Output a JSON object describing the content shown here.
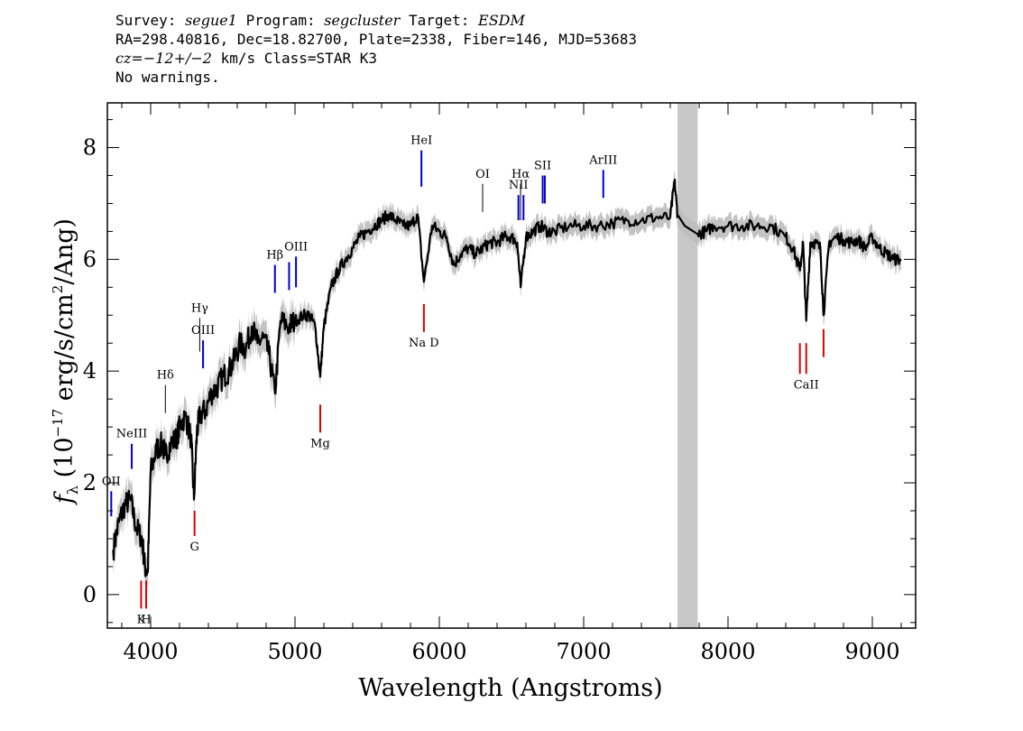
{
  "header": {
    "line1": {
      "survey_label": "Survey: ",
      "survey_value": "segue1",
      "program_label": " Program: ",
      "program_value": "segcluster",
      "target_label": " Target: ",
      "target_value": "ESDM"
    },
    "line2": "RA=298.40816, Dec=18.82700, Plate=2338, Fiber=146, MJD=53683",
    "line3": {
      "cz_label": "cz=",
      "cz_value": "−12+/−2",
      "cz_unit": " km/s Class=STAR K3"
    },
    "line4": "No warnings."
  },
  "chart_data": {
    "type": "line",
    "xlabel": "Wavelength (Angstroms)",
    "ylabel_parts": {
      "f": "f",
      "sub": "λ",
      "pre": " (10",
      "exp1": "−17",
      "mid": " erg/s/cm",
      "exp2": "2",
      "post": "/Ang)"
    },
    "xlim": [
      3700,
      9300
    ],
    "ylim": [
      -0.6,
      8.8
    ],
    "x_ticks": [
      4000,
      5000,
      6000,
      7000,
      8000,
      9000
    ],
    "y_ticks": [
      0,
      2,
      4,
      6,
      8
    ],
    "x_minor_step": 200,
    "y_minor_step": 0.5,
    "masked_region": [
      7650,
      7790
    ],
    "colors": {
      "flux": "#000000",
      "error": "#bdbdbd",
      "mask": "#c8c8c8",
      "emission": "#0000cc",
      "absorption": "#dd0000",
      "sky": "#000000"
    },
    "spectrum": {
      "x": [
        3740,
        3780,
        3820,
        3860,
        3900,
        3940,
        3960,
        3980,
        4000,
        4040,
        4080,
        4100,
        4140,
        4180,
        4200,
        4240,
        4280,
        4300,
        4320,
        4340,
        4380,
        4420,
        4460,
        4500,
        4540,
        4580,
        4620,
        4660,
        4700,
        4740,
        4780,
        4820,
        4861,
        4900,
        4960,
        5000,
        5060,
        5100,
        5140,
        5175,
        5200,
        5250,
        5300,
        5350,
        5400,
        5450,
        5500,
        5550,
        5600,
        5650,
        5700,
        5750,
        5800,
        5850,
        5893,
        5950,
        6000,
        6050,
        6100,
        6150,
        6200,
        6250,
        6300,
        6350,
        6400,
        6450,
        6500,
        6540,
        6563,
        6600,
        6650,
        6700,
        6750,
        6800,
        6900,
        7000,
        7100,
        7200,
        7300,
        7400,
        7500,
        7600,
        7630,
        7650,
        7700,
        7790,
        7850,
        7900,
        8000,
        8100,
        8200,
        8300,
        8400,
        8450,
        8498,
        8520,
        8542,
        8570,
        8600,
        8640,
        8662,
        8700,
        8750,
        8800,
        8850,
        8900,
        8950,
        9000,
        9050,
        9100,
        9150,
        9200
      ],
      "y": [
        0.8,
        1.3,
        1.6,
        1.7,
        1.2,
        1.0,
        0.5,
        0.4,
        2.2,
        2.6,
        2.7,
        2.5,
        2.7,
        2.8,
        3.0,
        3.2,
        2.8,
        1.7,
        2.9,
        3.2,
        3.3,
        3.6,
        3.7,
        3.9,
        4.0,
        4.2,
        4.5,
        4.4,
        4.8,
        4.5,
        4.6,
        4.3,
        3.6,
        4.9,
        4.8,
        4.9,
        5.0,
        5.0,
        4.8,
        3.9,
        4.8,
        5.5,
        5.8,
        6.0,
        6.2,
        6.4,
        6.5,
        6.6,
        6.7,
        6.8,
        6.7,
        6.6,
        6.6,
        6.8,
        5.6,
        6.6,
        6.5,
        6.4,
        5.9,
        6.1,
        6.2,
        6.1,
        6.2,
        6.3,
        6.3,
        6.4,
        6.4,
        6.3,
        5.5,
        6.4,
        6.5,
        6.6,
        6.5,
        6.5,
        6.6,
        6.6,
        6.6,
        6.65,
        6.7,
        6.7,
        6.75,
        6.75,
        7.4,
        6.8,
        6.6,
        6.45,
        6.5,
        6.6,
        6.6,
        6.6,
        6.6,
        6.6,
        6.4,
        6.2,
        5.8,
        6.3,
        4.9,
        6.3,
        6.3,
        6.2,
        5.0,
        6.3,
        6.4,
        6.35,
        6.3,
        6.35,
        6.2,
        6.4,
        6.2,
        6.1,
        6.0,
        6.0
      ]
    },
    "line_markers": [
      {
        "label": "HeI",
        "x": 5876,
        "y0": 7.3,
        "y1": 7.95,
        "color": "emission",
        "label_pos": "above"
      },
      {
        "label": "OI",
        "x": 6300,
        "y0": 6.85,
        "y1": 7.35,
        "color": "sky",
        "label_pos": "above"
      },
      {
        "label": "NII",
        "x": 6548,
        "y0": 6.7,
        "y1": 7.15,
        "color": "emission",
        "label_pos": "above"
      },
      {
        "label": "Hα",
        "x": 6563,
        "y0": 6.7,
        "y1": 7.35,
        "color": "sky",
        "label_pos": "above"
      },
      {
        "label": "NII",
        "x": 6583,
        "y0": 6.7,
        "y1": 7.15,
        "color": "emission",
        "label_pos": "none"
      },
      {
        "label": "SII",
        "x": 6716,
        "y0": 7.0,
        "y1": 7.5,
        "color": "emission",
        "label_pos": "above"
      },
      {
        "label": "SII",
        "x": 6731,
        "y0": 7.0,
        "y1": 7.5,
        "color": "emission",
        "label_pos": "none"
      },
      {
        "label": "ArIII",
        "x": 7136,
        "y0": 7.1,
        "y1": 7.6,
        "color": "emission",
        "label_pos": "above"
      },
      {
        "label": "Hβ",
        "x": 4861,
        "y0": 5.4,
        "y1": 5.9,
        "color": "emission",
        "label_pos": "above"
      },
      {
        "label": "OIII",
        "x": 4959,
        "y0": 5.45,
        "y1": 5.95,
        "color": "emission",
        "label_pos": "none"
      },
      {
        "label": "OIII",
        "x": 5007,
        "y0": 5.5,
        "y1": 6.05,
        "color": "emission",
        "label_pos": "above"
      },
      {
        "label": "Hγ",
        "x": 4340,
        "y0": 4.35,
        "y1": 4.95,
        "color": "sky",
        "label_pos": "above"
      },
      {
        "label": "OIII",
        "x": 4363,
        "y0": 4.05,
        "y1": 4.55,
        "color": "emission",
        "label_pos": "above"
      },
      {
        "label": "Hδ",
        "x": 4102,
        "y0": 3.25,
        "y1": 3.75,
        "color": "sky",
        "label_pos": "above"
      },
      {
        "label": "NeIII",
        "x": 3869,
        "y0": 2.25,
        "y1": 2.7,
        "color": "emission",
        "label_pos": "above"
      },
      {
        "label": "OII",
        "x": 3727,
        "y0": 1.4,
        "y1": 1.85,
        "color": "emission",
        "label_pos": "above"
      },
      {
        "label": "Na D",
        "x": 5893,
        "y0": 5.2,
        "y1": 4.7,
        "color": "absorption",
        "label_pos": "below"
      },
      {
        "label": "Mg",
        "x": 5175,
        "y0": 3.4,
        "y1": 2.9,
        "color": "absorption",
        "label_pos": "below"
      },
      {
        "label": "G",
        "x": 4304,
        "y0": 1.5,
        "y1": 1.05,
        "color": "absorption",
        "label_pos": "below"
      },
      {
        "label": "K",
        "x": 3934,
        "y0": 0.25,
        "y1": -0.25,
        "color": "absorption",
        "label_pos": "below"
      },
      {
        "label": "H",
        "x": 3969,
        "y0": 0.25,
        "y1": -0.25,
        "color": "absorption",
        "label_pos": "below"
      },
      {
        "label": "CaII",
        "x": 8498,
        "y0": 4.5,
        "y1": 3.95,
        "color": "absorption",
        "label_pos": "none"
      },
      {
        "label": "CaII",
        "x": 8542,
        "y0": 4.5,
        "y1": 3.95,
        "color": "absorption",
        "label_pos": "below"
      },
      {
        "label": "CaII",
        "x": 8662,
        "y0": 4.75,
        "y1": 4.25,
        "color": "absorption",
        "label_pos": "none"
      }
    ]
  }
}
